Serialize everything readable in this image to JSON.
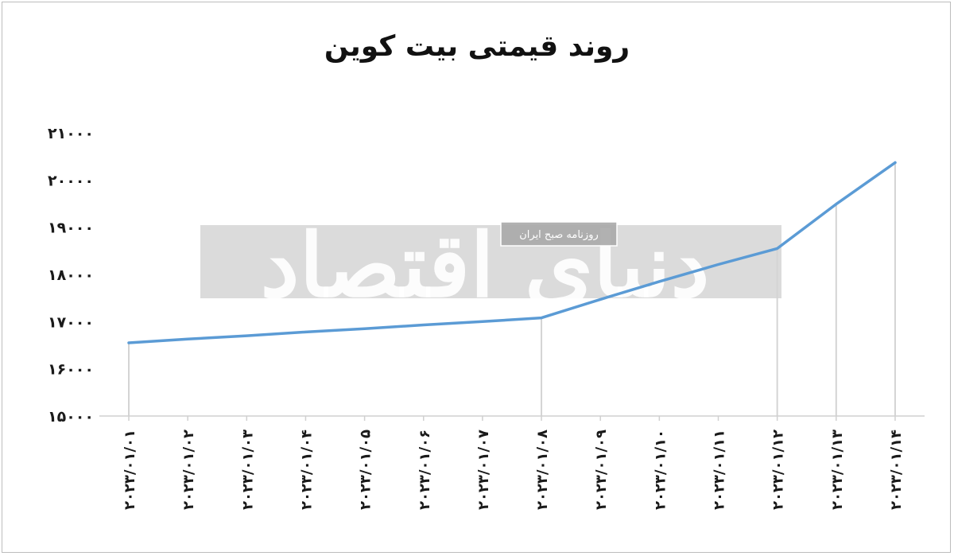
{
  "chart_data": {
    "type": "line",
    "title": "روند قیمتی بیت کوین",
    "categories": [
      "2023/01/01",
      "2023/01/02",
      "2023/01/03",
      "2023/01/04",
      "2023/01/05",
      "2023/01/06",
      "2023/01/07",
      "2023/01/08",
      "2023/01/09",
      "2023/01/10",
      "2023/01/11",
      "2023/01/12",
      "2023/01/13",
      "2023/01/14"
    ],
    "x_tick_labels": [
      "۲۰۲۳/۰۱/۰۱",
      "۲۰۲۳/۰۱/۰۲",
      "۲۰۲۳/۰۱/۰۳",
      "۲۰۲۳/۰۱/۰۴",
      "۲۰۲۳/۰۱/۰۵",
      "۲۰۲۳/۰۱/۰۶",
      "۲۰۲۳/۰۱/۰۷",
      "۲۰۲۳/۰۱/۰۸",
      "۲۰۲۳/۰۱/۰۹",
      "۲۰۲۳/۰۱/۱۰",
      "۲۰۲۳/۰۱/۱۱",
      "۲۰۲۳/۰۱/۱۲",
      "۲۰۲۳/۰۱/۱۳",
      "۲۰۲۳/۰۱/۱۴"
    ],
    "values": [
      16550,
      16630,
      16700,
      16780,
      16850,
      16930,
      17000,
      17080,
      17470,
      17850,
      18210,
      18550,
      19490,
      20370
    ],
    "ylim": [
      15000,
      21000
    ],
    "y_ticks": [
      15000,
      16000,
      17000,
      18000,
      19000,
      20000,
      21000
    ],
    "y_tick_labels": [
      "۱۵۰۰۰",
      "۱۶۰۰۰",
      "۱۷۰۰۰",
      "۱۸۰۰۰",
      "۱۹۰۰۰",
      "۲۰۰۰۰",
      "۲۱۰۰۰"
    ],
    "vertical_guides_at": [
      "2023/01/01",
      "2023/01/08",
      "2023/01/12",
      "2023/01/13",
      "2023/01/14"
    ],
    "line_color": "#5b9bd5",
    "grid": false
  },
  "watermark": {
    "brand": "دنیای اقتصاد",
    "subtitle": "روزنامه صبح ایران"
  }
}
